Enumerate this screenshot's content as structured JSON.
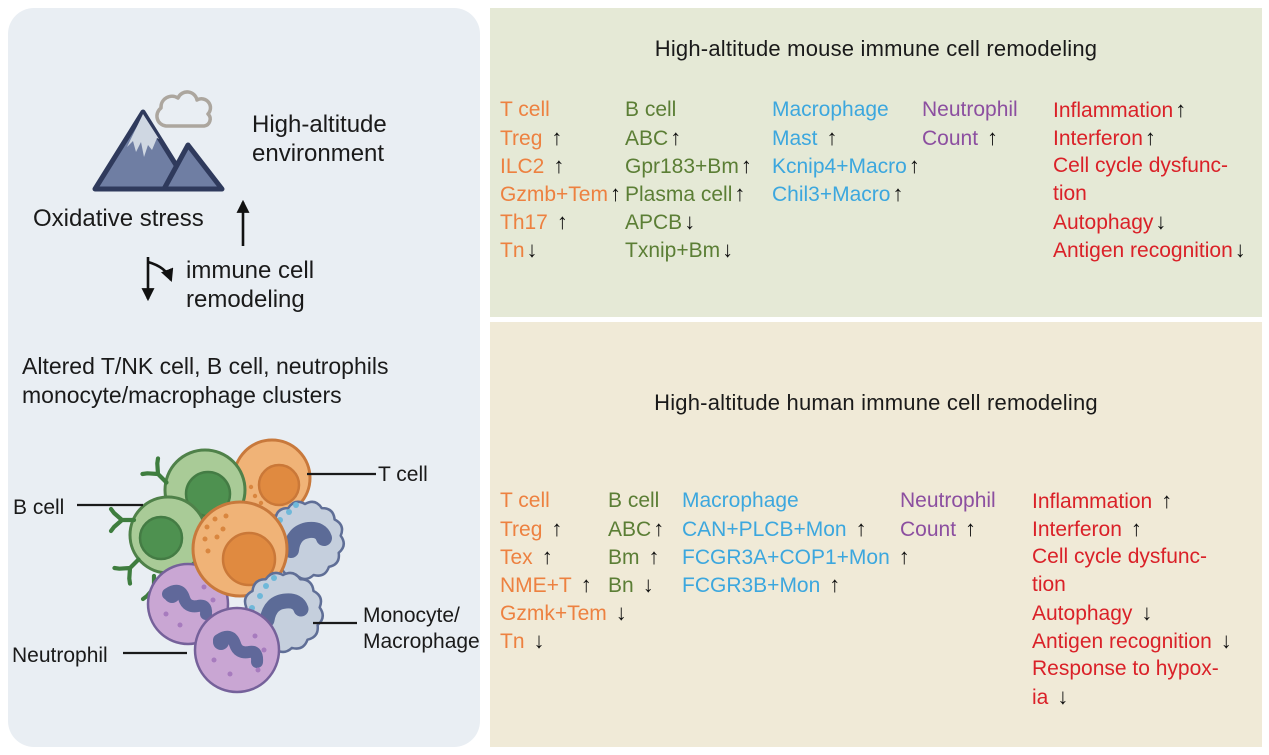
{
  "colors": {
    "t_cell_orange": "#ED8140",
    "b_cell_green": "#5B7E35",
    "macrophage_blue": "#3CA7DE",
    "neutrophil_purple": "#8C4FA0",
    "pathway_red": "#DA2128",
    "arrow_black": "#111111",
    "left_panel_bg": "#E9EEF3",
    "mouse_panel_bg": "#E5E9D6",
    "human_panel_bg": "#F0EAD7"
  },
  "left_panel": {
    "environment_line1": "High-altitude",
    "environment_line2": "environment",
    "oxidative_stress": "Oxidative stress",
    "remodeling_line1": "immune cell",
    "remodeling_line2": "remodeling",
    "altered_line1": "Altered T/NK cell, B cell, neutrophils",
    "altered_line2": "monocyte/macrophage clusters",
    "cell_labels": {
      "t_cell": "T cell",
      "b_cell": "B cell",
      "monocyte_line1": "Monocyte/",
      "monocyte_line2": "Macrophage",
      "neutrophil": "Neutrophil"
    }
  },
  "mouse_panel": {
    "title": "High-altitude mouse immune cell remodeling",
    "columns": [
      {
        "name": "t-cell",
        "color": "#ED8140",
        "items": [
          {
            "text": "T cell"
          },
          {
            "text": "Treg",
            "arrow": "up",
            "gap": true
          },
          {
            "text": "ILC2",
            "arrow": "up",
            "gap": true
          },
          {
            "text": "Gzmb+Tem",
            "arrow": "up"
          },
          {
            "text": "Th17",
            "arrow": "up",
            "gap": true
          },
          {
            "text": "Tn",
            "arrow": "down"
          }
        ]
      },
      {
        "name": "b-cell",
        "color": "#5B7E35",
        "items": [
          {
            "text": "B cell"
          },
          {
            "text": "ABC",
            "arrow": "up"
          },
          {
            "text": "Gpr183+Bm",
            "arrow": "up"
          },
          {
            "text": "Plasma cell",
            "arrow": "up"
          },
          {
            "text": "APCB",
            "arrow": "down"
          },
          {
            "text": "Txnip+Bm",
            "arrow": "down"
          }
        ]
      },
      {
        "name": "macrophage",
        "color": "#3CA7DE",
        "items": [
          {
            "text": "Macrophage"
          },
          {
            "text": "Mast",
            "arrow": "up",
            "gap": true
          },
          {
            "text": "Kcnip4+Macro",
            "arrow": "up"
          },
          {
            "text": "Chil3+Macro",
            "arrow": "up"
          }
        ]
      },
      {
        "name": "neutrophil",
        "color": "#8C4FA0",
        "items": [
          {
            "text": "Neutrophil"
          },
          {
            "text": "Count",
            "arrow": "up",
            "gap": true
          }
        ]
      },
      {
        "name": "pathways",
        "color": "#DA2128",
        "items": [
          {
            "text": "Inflammation",
            "arrow": "up"
          },
          {
            "text": "Interferon",
            "arrow": "up"
          },
          {
            "text": "Cell cycle dysfunc-"
          },
          {
            "text": "tion"
          },
          {
            "text": "Autophagy",
            "arrow": "down"
          },
          {
            "text": "Antigen recognition",
            "arrow": "down"
          }
        ]
      }
    ]
  },
  "human_panel": {
    "title": "High-altitude human immune cell remodeling",
    "columns": [
      {
        "name": "t-cell",
        "color": "#ED8140",
        "items": [
          {
            "text": "T cell"
          },
          {
            "text": "Treg",
            "arrow": "up",
            "gap": true
          },
          {
            "text": "Tex",
            "arrow": "up",
            "gap": true
          },
          {
            "text": "NME+T",
            "arrow": "up",
            "gap": true
          },
          {
            "text": "Gzmk+Tem",
            "arrow": "down",
            "gap": true
          },
          {
            "text": "Tn",
            "arrow": "down",
            "gap": true
          }
        ]
      },
      {
        "name": "b-cell",
        "color": "#5B7E35",
        "items": [
          {
            "text": "B cell"
          },
          {
            "text": "ABC",
            "arrow": "up"
          },
          {
            "text": "Bm",
            "arrow": "up",
            "gap": true
          },
          {
            "text": "Bn",
            "arrow": "down",
            "gap": true
          }
        ]
      },
      {
        "name": "macrophage",
        "color": "#3CA7DE",
        "items": [
          {
            "text": "Macrophage"
          },
          {
            "text": "CAN+PLCB+Mon",
            "arrow": "up",
            "gap": true
          },
          {
            "text": "FCGR3A+COP1+Mon",
            "arrow": "up",
            "gap": true
          },
          {
            "text": "FCGR3B+Mon",
            "arrow": "up",
            "gap": true
          }
        ]
      },
      {
        "name": "neutrophil",
        "color": "#8C4FA0",
        "items": [
          {
            "text": "Neutrophil"
          },
          {
            "text": "Count",
            "arrow": "up",
            "gap": true
          }
        ]
      },
      {
        "name": "pathways",
        "color": "#DA2128",
        "items": [
          {
            "text": "Inflammation",
            "arrow": "up",
            "gap": true
          },
          {
            "text": "Interferon",
            "arrow": "up",
            "gap": true
          },
          {
            "text": "Cell cycle dysfunc-"
          },
          {
            "text": "tion"
          },
          {
            "text": "Autophagy",
            "arrow": "down",
            "gap": true
          },
          {
            "text": "Antigen recognition",
            "arrow": "down",
            "gap": true
          },
          {
            "text": "Response to hypox-"
          },
          {
            "text": "ia",
            "arrow": "down",
            "gap": true
          }
        ]
      }
    ]
  }
}
